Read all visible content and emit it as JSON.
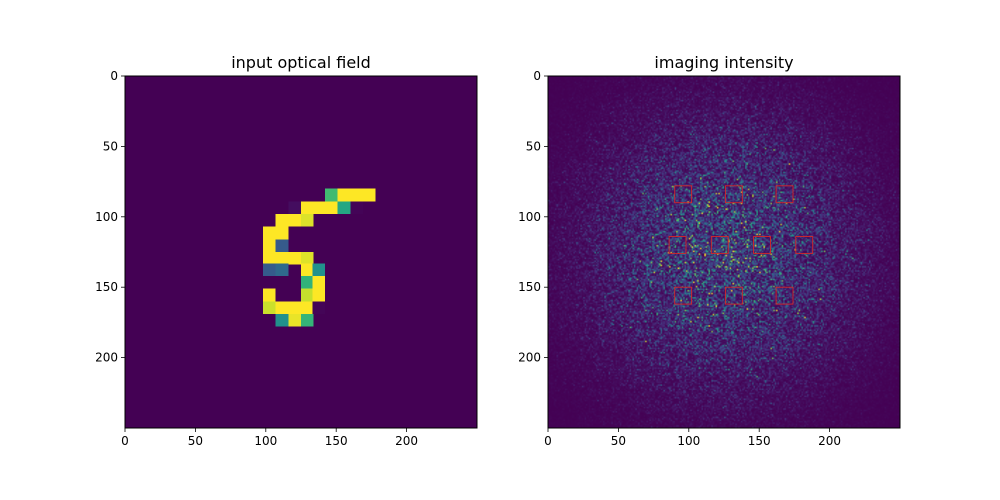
{
  "figure": {
    "background": "#ffffff"
  },
  "chart_data": [
    {
      "type": "heatmap",
      "title": "input optical field",
      "colormap": "viridis",
      "image_size": [
        250,
        250
      ],
      "xlim": [
        0,
        250
      ],
      "ylim": [
        250,
        0
      ],
      "xticks": [
        0,
        50,
        100,
        150,
        200
      ],
      "yticks": [
        0,
        50,
        100,
        150,
        200
      ],
      "xtick_labels": [
        "0",
        "50",
        "100",
        "150",
        "200"
      ],
      "ytick_labels": [
        "0",
        "50",
        "100",
        "150",
        "200"
      ],
      "content": "handwritten digit 5",
      "background_value": 0,
      "max_value": 1
    },
    {
      "type": "heatmap",
      "title": "imaging intensity",
      "colormap": "viridis",
      "image_size": [
        250,
        250
      ],
      "xlim": [
        0,
        250
      ],
      "ylim": [
        250,
        0
      ],
      "xticks": [
        0,
        50,
        100,
        150,
        200
      ],
      "yticks": [
        0,
        50,
        100,
        150,
        200
      ],
      "xtick_labels": [
        "0",
        "50",
        "100",
        "150",
        "200"
      ],
      "ytick_labels": [
        "0",
        "50",
        "100",
        "150",
        "200"
      ],
      "content": "speckle pattern centered on image",
      "detector_color": "#d62728",
      "detector_size": 12,
      "detector_centers": [
        [
          96,
          84
        ],
        [
          132,
          84
        ],
        [
          168,
          84
        ],
        [
          92,
          120
        ],
        [
          122,
          120
        ],
        [
          152,
          120
        ],
        [
          182,
          120
        ],
        [
          96,
          156
        ],
        [
          132,
          156
        ],
        [
          168,
          156
        ]
      ]
    }
  ]
}
